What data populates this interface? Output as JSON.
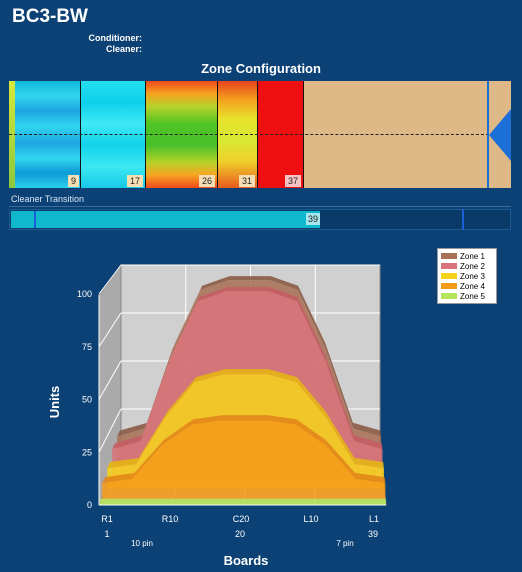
{
  "title": "BC3-BW",
  "conditioner_label": "Conditioner:",
  "cleaner_label": "Cleaner:",
  "zone_config_title": "Zone Configuration",
  "zone_boundaries": [
    "9",
    "17",
    "26",
    "31",
    "37"
  ],
  "cleaner_transition": {
    "label": "Cleaner Transition",
    "value": "39"
  },
  "legend": [
    {
      "name": "Zone 1",
      "color": "#a87155"
    },
    {
      "name": "Zone 2",
      "color": "#d9747c"
    },
    {
      "name": "Zone 3",
      "color": "#f5d21c"
    },
    {
      "name": "Zone 4",
      "color": "#f59b1a"
    },
    {
      "name": "Zone 5",
      "color": "#b5e55a"
    }
  ],
  "chart_data": {
    "type": "area",
    "ylabel": "Units",
    "xlabel": "Boards",
    "ylim": [
      0,
      100
    ],
    "yticks": [
      "0",
      "25",
      "50",
      "75",
      "100"
    ],
    "xtick_labels": [
      "R1",
      "R10",
      "C20",
      "L10",
      "L1"
    ],
    "xtick_numbers": [
      "1",
      "20",
      "39"
    ],
    "pin_labels": [
      "10 pin",
      "7 pin"
    ],
    "x": [
      1,
      5,
      9,
      13,
      17,
      20,
      23,
      27,
      31,
      35,
      39
    ],
    "series": [
      {
        "name": "Zone 1",
        "values": [
          15,
          19,
          60,
          90,
          95,
          95,
          95,
          90,
          60,
          19,
          15
        ]
      },
      {
        "name": "Zone 2",
        "values": [
          14,
          18,
          58,
          88,
          93,
          93,
          93,
          88,
          58,
          18,
          14
        ]
      },
      {
        "name": "Zone 3",
        "values": [
          10,
          12,
          35,
          52,
          56,
          56,
          56,
          52,
          35,
          12,
          10
        ]
      },
      {
        "name": "Zone 4",
        "values": [
          8,
          10,
          26,
          36,
          38,
          38,
          38,
          36,
          26,
          10,
          8
        ]
      },
      {
        "name": "Zone 5",
        "values": [
          3,
          3,
          3,
          3,
          3,
          3,
          3,
          3,
          3,
          3,
          3
        ]
      }
    ]
  }
}
